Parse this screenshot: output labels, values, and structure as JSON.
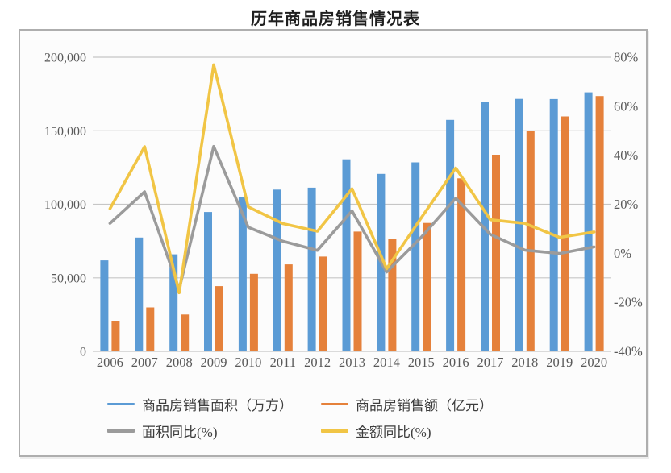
{
  "chart_data": {
    "type": "combo-bar-line",
    "title": "历年商品房销售情况表",
    "categories": [
      "2006",
      "2007",
      "2008",
      "2009",
      "2010",
      "2011",
      "2012",
      "2013",
      "2014",
      "2015",
      "2016",
      "2017",
      "2018",
      "2019",
      "2020"
    ],
    "series": [
      {
        "name": "商品房销售面积（万方）",
        "type": "bar",
        "axis": "left",
        "color": "#5B9BD5",
        "values": [
          61857,
          77355,
          65970,
          94755,
          104765,
          109946,
          111304,
          130551,
          120649,
          128495,
          157349,
          169408,
          171654,
          171558,
          176086
        ]
      },
      {
        "name": "商品房销售额（亿元）",
        "type": "bar",
        "axis": "left",
        "color": "#E5813B",
        "values": [
          20826,
          29889,
          25068,
          44355,
          52721,
          59119,
          64456,
          81428,
          76292,
          87281,
          117627,
          133701,
          149973,
          159725,
          173613
        ]
      },
      {
        "name": "面积同比(%)",
        "type": "line",
        "axis": "right",
        "color": "#9B9B9B",
        "values": [
          12.2,
          25.1,
          -14.7,
          43.6,
          10.6,
          4.9,
          1.2,
          17.3,
          -7.6,
          6.5,
          22.5,
          7.7,
          1.3,
          -0.1,
          2.6
        ]
      },
      {
        "name": "金额同比(%)",
        "type": "line",
        "axis": "right",
        "color": "#F1C545",
        "values": [
          18.2,
          43.5,
          -16.1,
          76.9,
          18.9,
          12.1,
          9.0,
          26.3,
          -6.3,
          14.4,
          34.8,
          13.7,
          12.2,
          6.5,
          8.7
        ]
      }
    ],
    "left_axis": {
      "min": 0,
      "max": 200000,
      "tick_values": [
        200000,
        150000,
        100000,
        50000,
        0
      ],
      "tick_labels": [
        "200,000",
        "150,000",
        "100,000",
        "50,000",
        "0"
      ]
    },
    "right_axis": {
      "min": -40,
      "max": 80,
      "tick_values": [
        80,
        60,
        40,
        20,
        0,
        -20,
        -40
      ],
      "tick_labels": [
        "80%",
        "60%",
        "40%",
        "20%",
        "0%",
        "-20%",
        "-40%"
      ]
    },
    "grid": true,
    "legend": {
      "position": "bottom",
      "items": [
        {
          "label": "商品房销售面积（万方）",
          "color": "#5B9BD5",
          "swatch": "thin"
        },
        {
          "label": "商品房销售额（亿元）",
          "color": "#E5813B",
          "swatch": "thin"
        },
        {
          "label": "面积同比(%)",
          "color": "#9B9B9B",
          "swatch": "thick"
        },
        {
          "label": "金额同比(%)",
          "color": "#F1C545",
          "swatch": "thick"
        }
      ]
    },
    "style": {
      "axis_text_color": "#595959",
      "grid_color": "#c6c6c6",
      "border_color": "#aeaeae"
    }
  }
}
